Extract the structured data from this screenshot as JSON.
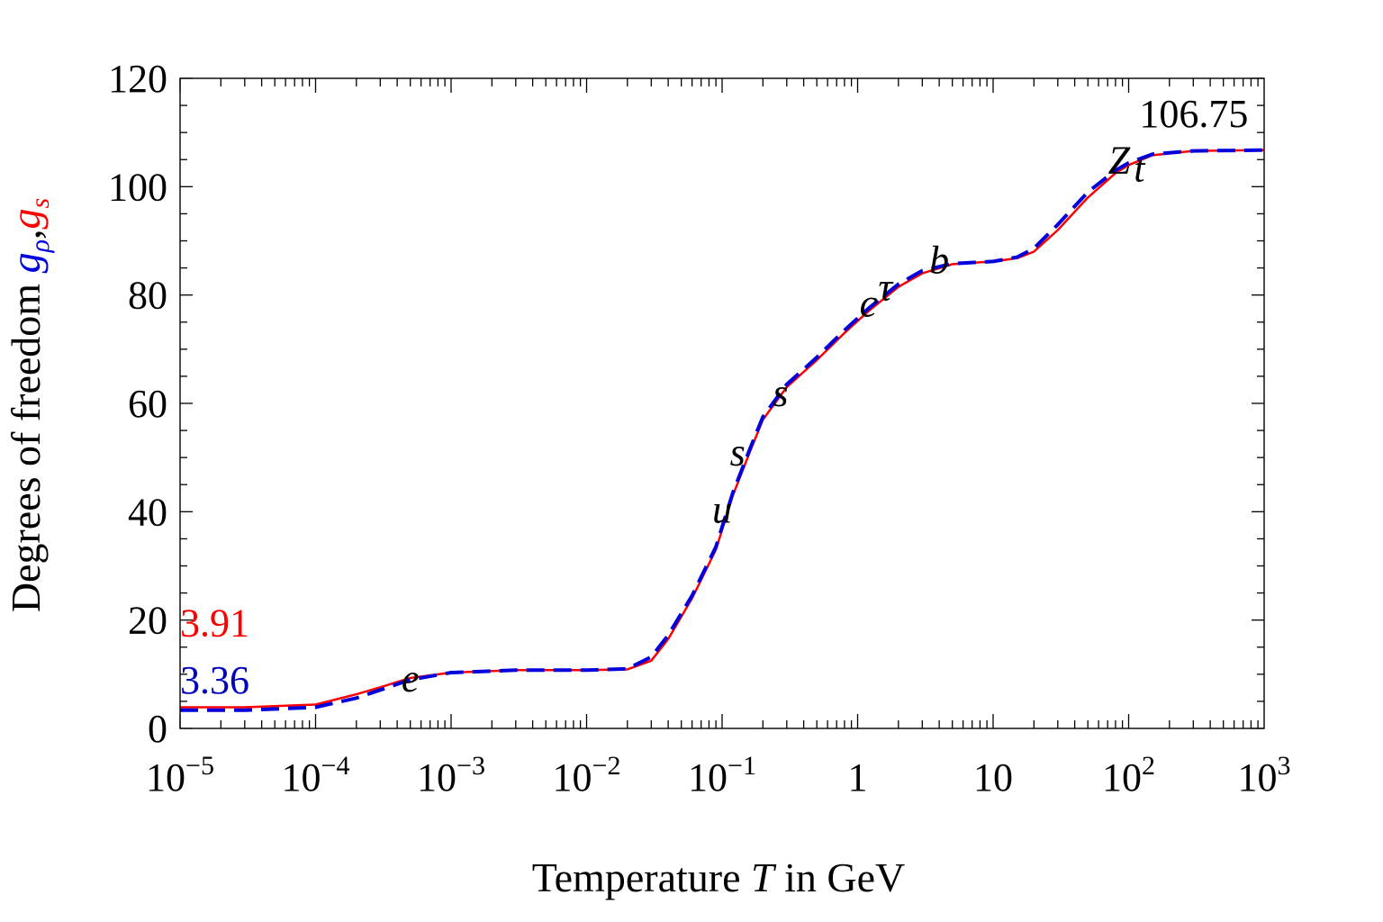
{
  "chart_data": {
    "type": "line",
    "xscale": "log",
    "xlim": [
      1e-05,
      1000
    ],
    "ylim": [
      0,
      120
    ],
    "grid": false,
    "xlabel_text": "Temperature ",
    "xlabel_var": "T",
    "xlabel_unit": " in GeV",
    "ylabel_text": "Degrees of freedom ",
    "ylabel_sym1": "g",
    "ylabel_sub1": "ρ",
    "ylabel_sep": ",",
    "ylabel_sym2": "g",
    "ylabel_sub2": "s",
    "yticks": [
      {
        "value": 0,
        "label": "0"
      },
      {
        "value": 20,
        "label": "20"
      },
      {
        "value": 40,
        "label": "40"
      },
      {
        "value": 60,
        "label": "60"
      },
      {
        "value": 80,
        "label": "80"
      },
      {
        "value": 100,
        "label": "100"
      },
      {
        "value": 120,
        "label": "120"
      }
    ],
    "xticks": [
      {
        "value": 1e-05,
        "base": "10",
        "exp": "−5"
      },
      {
        "value": 0.0001,
        "base": "10",
        "exp": "−4"
      },
      {
        "value": 0.001,
        "base": "10",
        "exp": "−3"
      },
      {
        "value": 0.01,
        "base": "10",
        "exp": "−2"
      },
      {
        "value": 0.1,
        "base": "10",
        "exp": "−1"
      },
      {
        "value": 1,
        "base": "1",
        "exp": ""
      },
      {
        "value": 10,
        "base": "10",
        "exp": ""
      },
      {
        "value": 100,
        "base": "10",
        "exp": "2"
      },
      {
        "value": 1000,
        "base": "10",
        "exp": "3"
      }
    ],
    "series": [
      {
        "name": "g_s",
        "color": "#ff0000",
        "style": "solid",
        "points": [
          [
            1e-05,
            3.91
          ],
          [
            3e-05,
            3.91
          ],
          [
            0.0001,
            4.4
          ],
          [
            0.0002,
            6.3
          ],
          [
            0.0003,
            7.6
          ],
          [
            0.0005,
            9.3
          ],
          [
            0.001,
            10.3
          ],
          [
            0.003,
            10.75
          ],
          [
            0.01,
            10.75
          ],
          [
            0.02,
            10.9
          ],
          [
            0.03,
            12.5
          ],
          [
            0.04,
            16.5
          ],
          [
            0.06,
            24
          ],
          [
            0.09,
            33
          ],
          [
            0.12,
            43
          ],
          [
            0.16,
            51
          ],
          [
            0.2,
            57
          ],
          [
            0.3,
            63
          ],
          [
            0.5,
            68
          ],
          [
            0.8,
            73
          ],
          [
            1.2,
            77
          ],
          [
            2,
            81.5
          ],
          [
            3,
            84
          ],
          [
            5,
            85.7
          ],
          [
            10,
            86.2
          ],
          [
            15,
            86.8
          ],
          [
            20,
            88
          ],
          [
            30,
            92
          ],
          [
            50,
            98
          ],
          [
            80,
            102.5
          ],
          [
            100,
            104
          ],
          [
            150,
            105.8
          ],
          [
            300,
            106.6
          ],
          [
            1000,
            106.75
          ]
        ]
      },
      {
        "name": "g_ρ",
        "color": "#0000dd",
        "style": "dashed",
        "points": [
          [
            1e-05,
            3.36
          ],
          [
            3e-05,
            3.36
          ],
          [
            0.0001,
            3.9
          ],
          [
            0.0002,
            5.6
          ],
          [
            0.0003,
            7.1
          ],
          [
            0.0005,
            9
          ],
          [
            0.001,
            10.3
          ],
          [
            0.003,
            10.75
          ],
          [
            0.01,
            10.75
          ],
          [
            0.02,
            11
          ],
          [
            0.03,
            13.2
          ],
          [
            0.04,
            17.2
          ],
          [
            0.06,
            24.5
          ],
          [
            0.09,
            33.5
          ],
          [
            0.12,
            43.5
          ],
          [
            0.16,
            51.5
          ],
          [
            0.2,
            57.5
          ],
          [
            0.3,
            63.5
          ],
          [
            0.5,
            68.5
          ],
          [
            0.8,
            73.5
          ],
          [
            1.2,
            77.5
          ],
          [
            2,
            82
          ],
          [
            3,
            84.5
          ],
          [
            5,
            85.8
          ],
          [
            10,
            86.2
          ],
          [
            15,
            87
          ],
          [
            20,
            88.6
          ],
          [
            30,
            93
          ],
          [
            50,
            99
          ],
          [
            80,
            103
          ],
          [
            100,
            104.4
          ],
          [
            150,
            106
          ],
          [
            300,
            106.6
          ],
          [
            1000,
            106.75
          ]
        ]
      }
    ],
    "annotations": [
      {
        "text": "3.91",
        "x": 1e-05,
        "y": 17,
        "color": "#ff0000",
        "italic": false,
        "anchor": "start"
      },
      {
        "text": "3.36",
        "x": 1e-05,
        "y": 6.5,
        "color": "#0000bb",
        "italic": false,
        "anchor": "start"
      },
      {
        "text": "106.75",
        "x": 120,
        "y": 111,
        "color": "#000000",
        "italic": false,
        "anchor": "start"
      },
      {
        "text": "e",
        "x": 0.0005,
        "y": 6.8,
        "color": "#000000",
        "italic": true,
        "anchor": "middle"
      },
      {
        "text": "u",
        "x": 0.1,
        "y": 38,
        "color": "#000000",
        "italic": true,
        "anchor": "middle"
      },
      {
        "text": "s",
        "x": 0.13,
        "y": 48.5,
        "color": "#000000",
        "italic": true,
        "anchor": "middle"
      },
      {
        "text": "s",
        "x": 0.27,
        "y": 59.5,
        "color": "#000000",
        "italic": true,
        "anchor": "middle"
      },
      {
        "text": "c",
        "x": 1.2,
        "y": 76,
        "color": "#000000",
        "italic": true,
        "anchor": "middle"
      },
      {
        "text": "τ",
        "x": 1.6,
        "y": 79,
        "color": "#000000",
        "italic": true,
        "anchor": "middle"
      },
      {
        "text": "b",
        "x": 4,
        "y": 84,
        "color": "#000000",
        "italic": true,
        "anchor": "middle"
      },
      {
        "text": "Z",
        "x": 85,
        "y": 102.5,
        "color": "#000000",
        "italic": true,
        "anchor": "middle"
      },
      {
        "text": "t",
        "x": 120,
        "y": 101,
        "color": "#000000",
        "italic": true,
        "anchor": "middle"
      }
    ],
    "legend": "none"
  }
}
